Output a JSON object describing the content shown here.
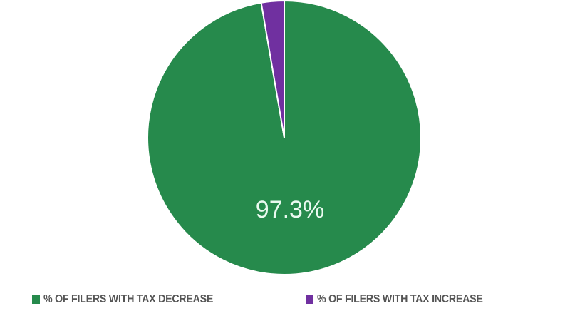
{
  "chart_data": {
    "type": "pie",
    "title": "",
    "slices": [
      {
        "label": "% OF FILERS WITH TAX DECREASE",
        "value": 97.3,
        "color": "#268a4c",
        "data_label": "97.3%"
      },
      {
        "label": "% OF FILERS WITH TAX INCREASE",
        "value": 2.7,
        "color": "#7030a0",
        "data_label": ""
      }
    ],
    "start_angle_deg": 0,
    "direction": "counterclockwise-small-slice-left-of-top",
    "legend_position": "bottom"
  },
  "legend": {
    "items": [
      {
        "label": "% OF FILERS WITH TAX DECREASE",
        "color": "#268a4c"
      },
      {
        "label": "% OF FILERS WITH TAX INCREASE",
        "color": "#7030a0"
      }
    ]
  },
  "labels": {
    "main_slice": "97.3%"
  }
}
